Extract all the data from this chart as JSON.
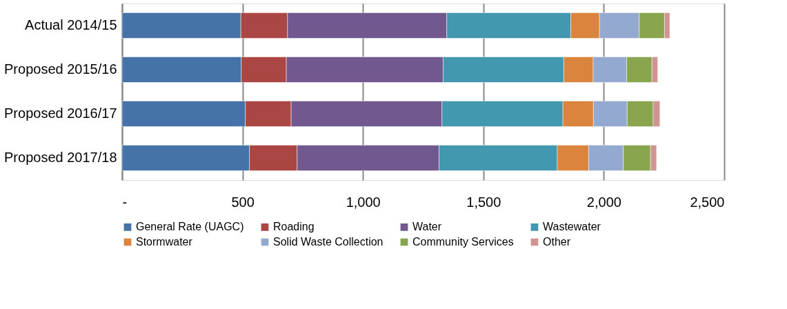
{
  "chart_data": {
    "type": "bar",
    "orientation": "horizontal",
    "stacked": true,
    "categories": [
      "Actual 2014/15",
      "Proposed 2015/16",
      "Proposed 2016/17",
      "Proposed 2017/18"
    ],
    "series": [
      {
        "name": "General Rate (UAGC)",
        "color": "#4572a7",
        "values": [
          493,
          495,
          512,
          529
        ]
      },
      {
        "name": "Roading",
        "color": "#aa4643",
        "values": [
          194,
          187,
          190,
          198
        ]
      },
      {
        "name": "Water",
        "color": "#71588f",
        "values": [
          661,
          651,
          626,
          589
        ]
      },
      {
        "name": "Wastewater",
        "color": "#4198af",
        "values": [
          515,
          501,
          502,
          491
        ]
      },
      {
        "name": "Stormwater",
        "color": "#db843d",
        "values": [
          119,
          122,
          127,
          130
        ]
      },
      {
        "name": "Solid Waste Collection",
        "color": "#93a9cf",
        "values": [
          165,
          139,
          140,
          144
        ]
      },
      {
        "name": "Community Services",
        "color": "#89a54e",
        "values": [
          105,
          105,
          108,
          113
        ]
      },
      {
        "name": "Other",
        "color": "#d09493",
        "values": [
          22,
          24,
          28,
          25
        ]
      }
    ],
    "xlim": [
      0,
      2500
    ],
    "xticks": [
      {
        "value": 0,
        "label": "-"
      },
      500,
      {
        "value": 1000,
        "label": "1,000"
      },
      {
        "value": 1500,
        "label": "1,500"
      },
      {
        "value": 2000,
        "label": "2,000"
      },
      {
        "value": 2500,
        "label": "2,500"
      }
    ],
    "grid": "x",
    "legend": "bottom"
  }
}
